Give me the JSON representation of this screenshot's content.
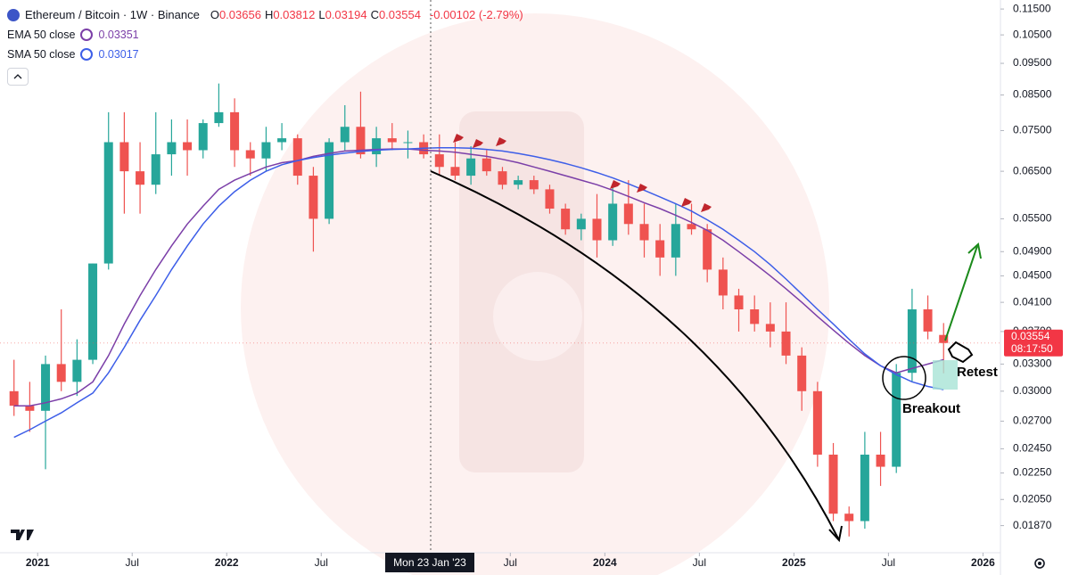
{
  "chart_data": {
    "type": "candlestick",
    "title": "Ethereum / Bitcoin · 1W · Binance",
    "ohlc_legend": [
      {
        "key": "O",
        "value": "0.03656"
      },
      {
        "key": "H",
        "value": "0.03812"
      },
      {
        "key": "L",
        "value": "0.03194"
      },
      {
        "key": "C",
        "value": "0.03554"
      }
    ],
    "change": "-0.00102 (-2.79%)",
    "categories": [
      "2020-11",
      "2020-12",
      "2021-01",
      "2021-02",
      "2021-03",
      "2021-04",
      "2021-05",
      "2021-06",
      "2021-07",
      "2021-08",
      "2021-09",
      "2021-10",
      "2021-11",
      "2021-12",
      "2022-01",
      "2022-02",
      "2022-03",
      "2022-04",
      "2022-05",
      "2022-06",
      "2022-07",
      "2022-08",
      "2022-09",
      "2022-10",
      "2022-11",
      "2022-12",
      "2023-01",
      "2023-02",
      "2023-03",
      "2023-04",
      "2023-05",
      "2023-06",
      "2023-07",
      "2023-08",
      "2023-09",
      "2023-10",
      "2023-11",
      "2023-12",
      "2024-01",
      "2024-02",
      "2024-03",
      "2024-04",
      "2024-05",
      "2024-06",
      "2024-07",
      "2024-08",
      "2024-09",
      "2024-10",
      "2024-11",
      "2024-12",
      "2025-01",
      "2025-02",
      "2025-03",
      "2025-04",
      "2025-05",
      "2025-06",
      "2025-07",
      "2025-08",
      "2025-09",
      "2025-10"
    ],
    "open": [
      0.03,
      0.0285,
      0.028,
      0.033,
      0.031,
      0.0335,
      0.047,
      0.072,
      0.065,
      0.062,
      0.069,
      0.072,
      0.07,
      0.077,
      0.08,
      0.07,
      0.068,
      0.072,
      0.073,
      0.064,
      0.055,
      0.072,
      0.076,
      0.069,
      0.073,
      0.072,
      0.072,
      0.069,
      0.066,
      0.064,
      0.068,
      0.065,
      0.062,
      0.063,
      0.061,
      0.057,
      0.053,
      0.055,
      0.051,
      0.058,
      0.054,
      0.051,
      0.048,
      0.054,
      0.053,
      0.046,
      0.042,
      0.04,
      0.038,
      0.037,
      0.034,
      0.03,
      0.024,
      0.0195,
      0.019,
      0.024,
      0.023,
      0.032,
      0.04,
      0.03656
    ],
    "high": [
      0.0335,
      0.031,
      0.034,
      0.04,
      0.036,
      0.047,
      0.08,
      0.08,
      0.072,
      0.08,
      0.078,
      0.078,
      0.078,
      0.0885,
      0.084,
      0.072,
      0.076,
      0.077,
      0.074,
      0.066,
      0.073,
      0.082,
      0.086,
      0.076,
      0.077,
      0.075,
      0.074,
      0.074,
      0.072,
      0.071,
      0.07,
      0.066,
      0.064,
      0.064,
      0.062,
      0.058,
      0.056,
      0.06,
      0.062,
      0.063,
      0.058,
      0.054,
      0.058,
      0.058,
      0.054,
      0.048,
      0.043,
      0.042,
      0.041,
      0.041,
      0.035,
      0.031,
      0.025,
      0.02,
      0.026,
      0.026,
      0.033,
      0.043,
      0.042,
      0.03812
    ],
    "low": [
      0.0275,
      0.026,
      0.0228,
      0.03,
      0.0295,
      0.033,
      0.046,
      0.056,
      0.056,
      0.06,
      0.064,
      0.064,
      0.068,
      0.076,
      0.066,
      0.064,
      0.065,
      0.07,
      0.062,
      0.049,
      0.054,
      0.07,
      0.068,
      0.066,
      0.07,
      0.068,
      0.068,
      0.064,
      0.063,
      0.062,
      0.064,
      0.061,
      0.061,
      0.06,
      0.056,
      0.052,
      0.051,
      0.048,
      0.05,
      0.052,
      0.048,
      0.045,
      0.045,
      0.052,
      0.044,
      0.04,
      0.037,
      0.037,
      0.035,
      0.033,
      0.028,
      0.023,
      0.019,
      0.018,
      0.0185,
      0.0215,
      0.0225,
      0.031,
      0.036,
      0.03194
    ],
    "close": [
      0.0285,
      0.028,
      0.033,
      0.031,
      0.0335,
      0.047,
      0.072,
      0.065,
      0.062,
      0.069,
      0.072,
      0.07,
      0.077,
      0.08,
      0.07,
      0.068,
      0.072,
      0.073,
      0.064,
      0.055,
      0.072,
      0.076,
      0.069,
      0.073,
      0.072,
      0.072,
      0.069,
      0.066,
      0.064,
      0.068,
      0.065,
      0.062,
      0.063,
      0.061,
      0.057,
      0.053,
      0.055,
      0.051,
      0.058,
      0.054,
      0.051,
      0.048,
      0.054,
      0.053,
      0.046,
      0.042,
      0.04,
      0.038,
      0.037,
      0.034,
      0.03,
      0.024,
      0.0195,
      0.019,
      0.024,
      0.023,
      0.032,
      0.04,
      0.037,
      0.03554
    ],
    "colors": {
      "up": "#26a69a",
      "down": "#ef5350"
    },
    "series": [
      {
        "name": "EMA 50 close",
        "color": "#7b3fa8",
        "value_label": "0.03351",
        "values": [
          0.0285,
          0.0285,
          0.0288,
          0.0292,
          0.0298,
          0.031,
          0.034,
          0.038,
          0.042,
          0.046,
          0.05,
          0.054,
          0.0575,
          0.061,
          0.063,
          0.0645,
          0.066,
          0.067,
          0.0675,
          0.0685,
          0.0692,
          0.0698,
          0.07,
          0.0702,
          0.0703,
          0.0703,
          0.07,
          0.0698,
          0.0695,
          0.069,
          0.0685,
          0.0678,
          0.067,
          0.066,
          0.065,
          0.064,
          0.063,
          0.062,
          0.0608,
          0.0595,
          0.0582,
          0.057,
          0.0557,
          0.0543,
          0.0528,
          0.051,
          0.049,
          0.047,
          0.045,
          0.043,
          0.041,
          0.039,
          0.0372,
          0.0355,
          0.034,
          0.0328,
          0.032,
          0.0325,
          0.033,
          0.03351
        ]
      },
      {
        "name": "SMA 50 close",
        "color": "#3d5ee8",
        "value_label": "0.03017",
        "values": [
          0.0255,
          0.0262,
          0.027,
          0.0278,
          0.0288,
          0.0298,
          0.032,
          0.035,
          0.0385,
          0.042,
          0.046,
          0.05,
          0.054,
          0.0575,
          0.0605,
          0.063,
          0.065,
          0.0665,
          0.0675,
          0.0682,
          0.0688,
          0.0693,
          0.0697,
          0.07,
          0.0702,
          0.0703,
          0.0705,
          0.0706,
          0.0706,
          0.0705,
          0.0702,
          0.0698,
          0.0692,
          0.0685,
          0.0677,
          0.0668,
          0.0658,
          0.0647,
          0.0635,
          0.0622,
          0.0608,
          0.0594,
          0.058,
          0.0565,
          0.0548,
          0.053,
          0.051,
          0.049,
          0.0468,
          0.0445,
          0.0422,
          0.04,
          0.038,
          0.036,
          0.0342,
          0.0328,
          0.0318,
          0.031,
          0.0305,
          0.03017
        ]
      }
    ],
    "ylim": [
      0.017,
      0.1187
    ],
    "log_scale": true,
    "grid": false,
    "yticks": [
      {
        "value": 0.115,
        "label": "0.11500"
      },
      {
        "value": 0.105,
        "label": "0.10500"
      },
      {
        "value": 0.095,
        "label": "0.09500"
      },
      {
        "value": 0.085,
        "label": "0.08500"
      },
      {
        "value": 0.075,
        "label": "0.07500"
      },
      {
        "value": 0.065,
        "label": "0.06500"
      },
      {
        "value": 0.055,
        "label": "0.05500"
      },
      {
        "value": 0.049,
        "label": "0.04900"
      },
      {
        "value": 0.045,
        "label": "0.04500"
      },
      {
        "value": 0.041,
        "label": "0.04100"
      },
      {
        "value": 0.037,
        "label": "0.03700"
      },
      {
        "value": 0.033,
        "label": "0.03300"
      },
      {
        "value": 0.03,
        "label": "0.03000"
      },
      {
        "value": 0.027,
        "label": "0.02700"
      },
      {
        "value": 0.0245,
        "label": "0.02450"
      },
      {
        "value": 0.0225,
        "label": "0.02250"
      },
      {
        "value": 0.0205,
        "label": "0.02050"
      },
      {
        "value": 0.0187,
        "label": "0.01870"
      }
    ],
    "xticks": [
      {
        "value": "2021-01",
        "label": "2021"
      },
      {
        "value": "2021-07",
        "label": "Jul"
      },
      {
        "value": "2022-01",
        "label": "2022"
      },
      {
        "value": "2022-07",
        "label": "Jul"
      },
      {
        "value": "2023-07",
        "label": "Jul"
      },
      {
        "value": "2024-01",
        "label": "2024"
      },
      {
        "value": "2024-07",
        "label": "Jul"
      },
      {
        "value": "2025-01",
        "label": "2025"
      },
      {
        "value": "2025-07",
        "label": "Jul"
      },
      {
        "value": "2026-01",
        "label": "2026"
      }
    ],
    "crosshair": "Mon 23 Jan '23",
    "price_tag": {
      "price": "0.03554",
      "countdown": "08:17:50"
    },
    "annotations": [
      "Breakout",
      "Retest"
    ]
  }
}
